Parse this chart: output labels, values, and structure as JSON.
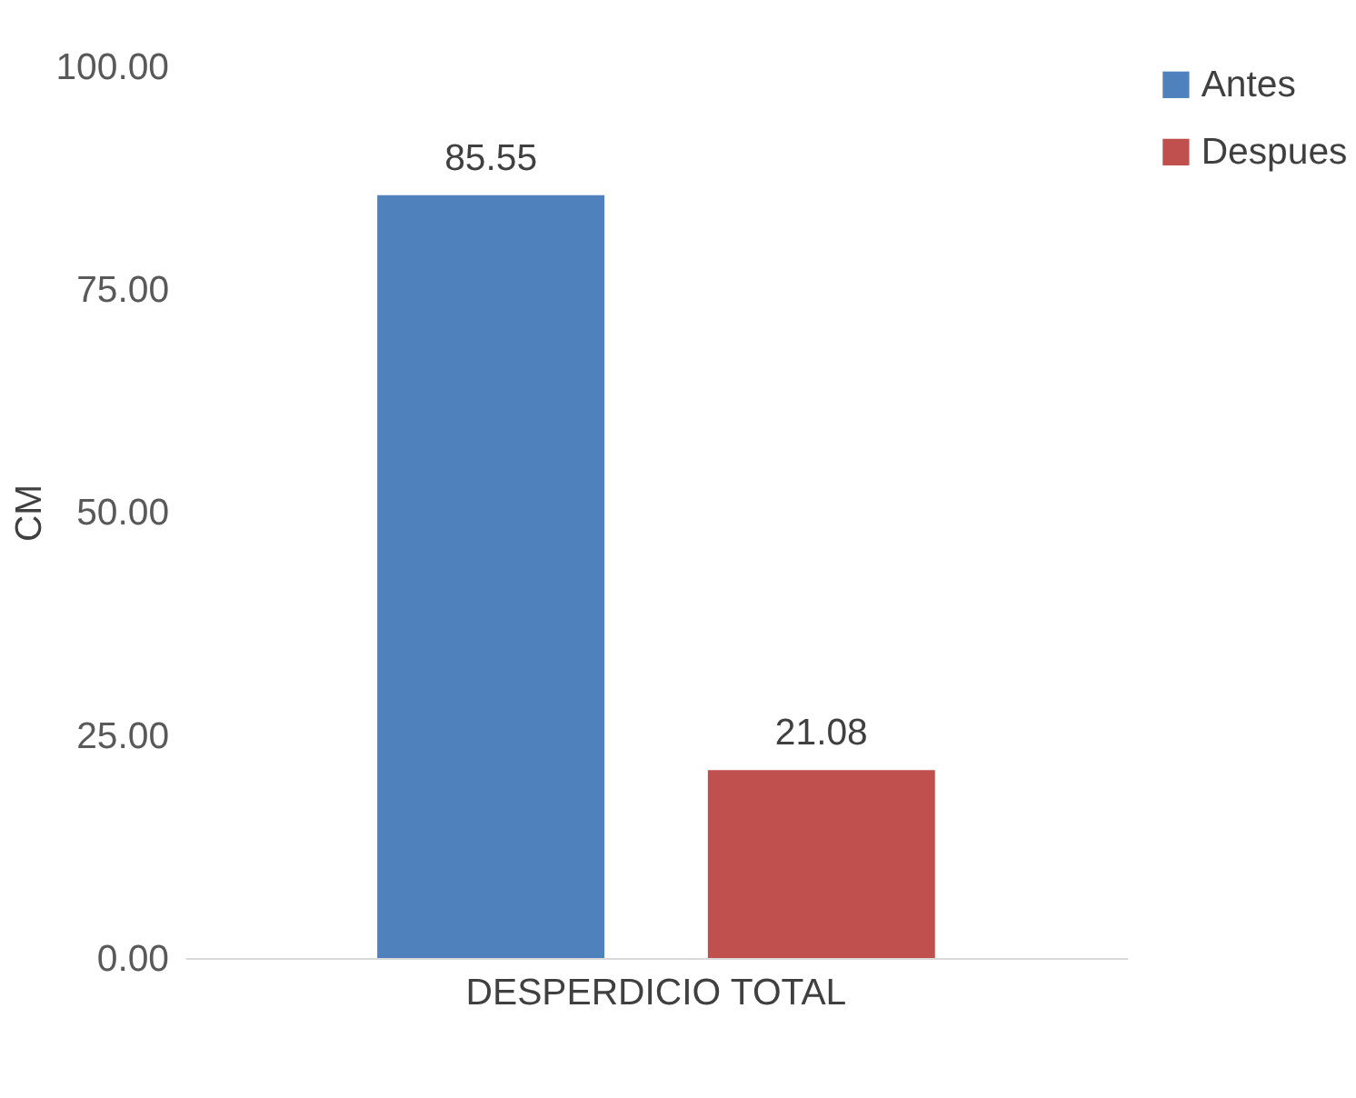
{
  "chart_data": {
    "type": "bar",
    "ylabel": "CM",
    "categories": [
      "DESPERDICIO TOTAL"
    ],
    "series": [
      {
        "name": "Antes",
        "color": "#4f81bd",
        "values": [
          85.55
        ]
      },
      {
        "name": "Despues",
        "color": "#c0504d",
        "values": [
          21.08
        ]
      }
    ],
    "ylim": [
      0,
      100
    ],
    "yticks": [
      {
        "value": 0,
        "label": "0.00"
      },
      {
        "value": 25,
        "label": "25.00"
      },
      {
        "value": 50,
        "label": "50.00"
      },
      {
        "value": 75,
        "label": "75.00"
      },
      {
        "value": 100,
        "label": "100.00"
      }
    ],
    "grid": false,
    "legend": "right",
    "data_labels": true
  }
}
